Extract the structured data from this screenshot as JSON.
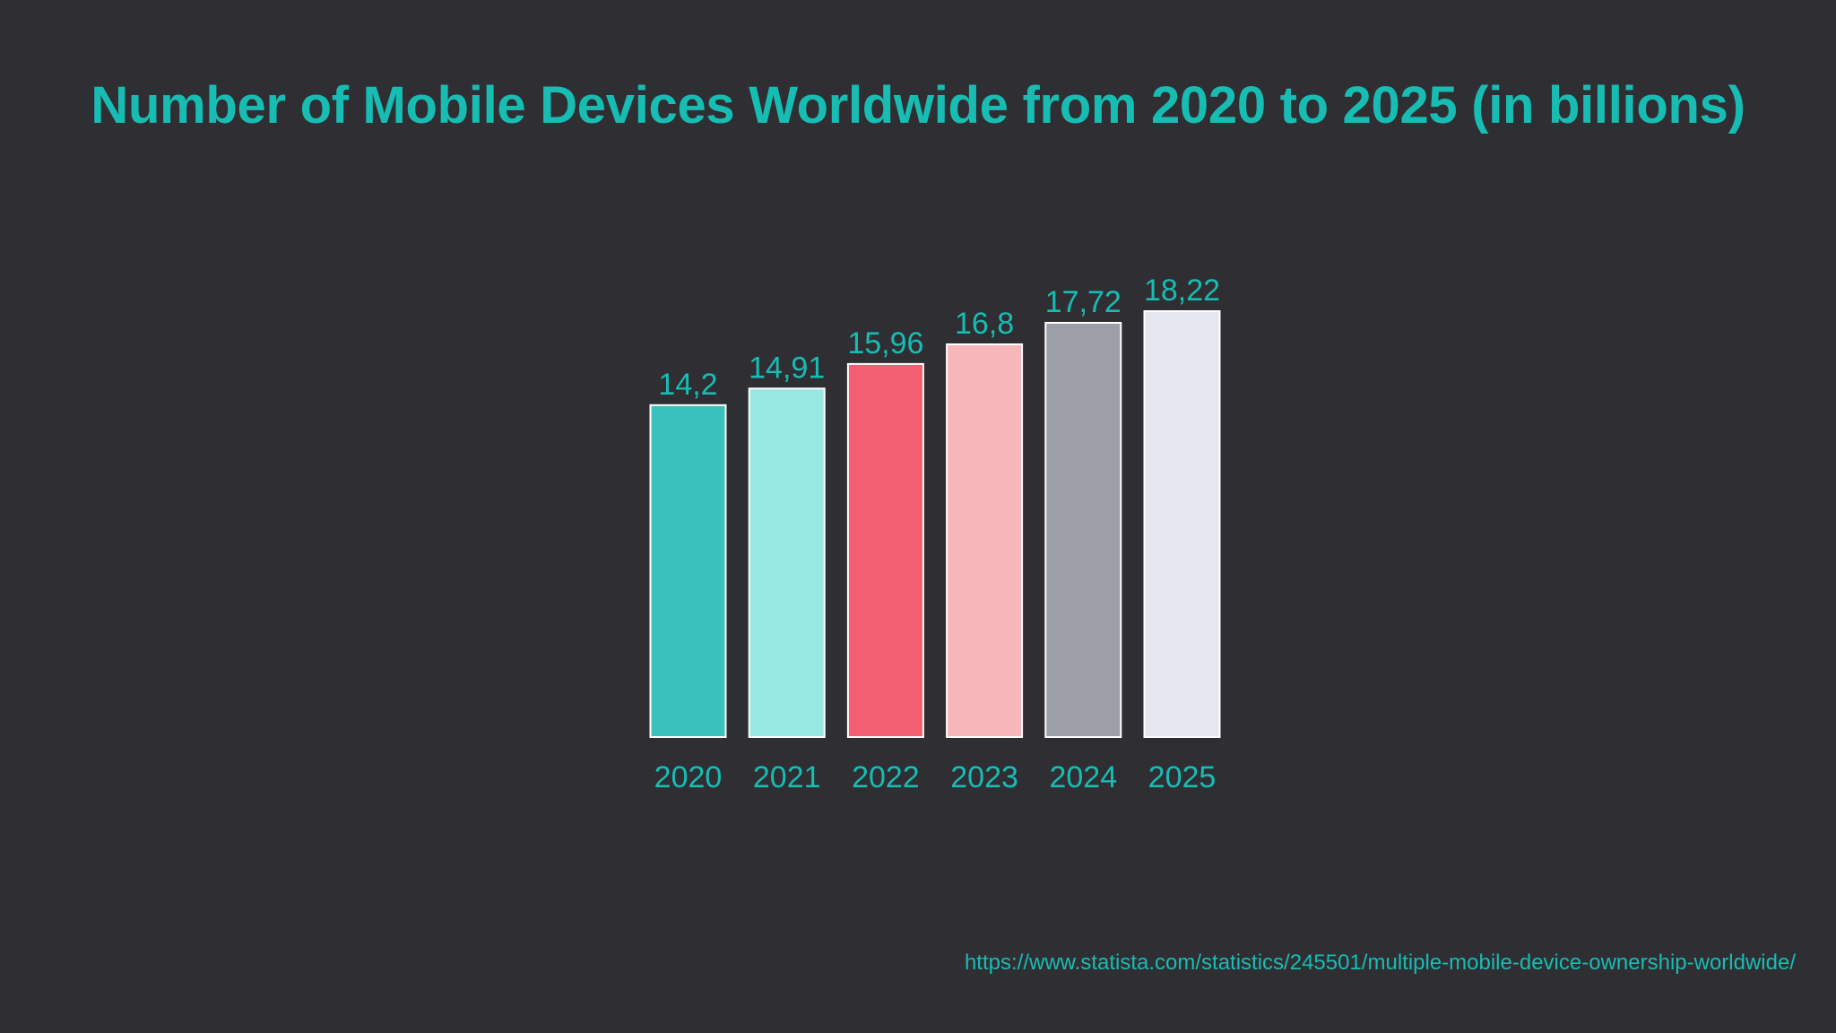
{
  "colors": {
    "background": "#2f2e33",
    "accent": "#17bdb3",
    "bar_outline": "#ffffff"
  },
  "chart_data": {
    "type": "bar",
    "title": "Number of Mobile Devices Worldwide from 2020 to 2025 (in billions)",
    "xlabel": "",
    "ylabel": "",
    "ylim": [
      0,
      18.22
    ],
    "grid": false,
    "categories": [
      "2020",
      "2021",
      "2022",
      "2023",
      "2024",
      "2025"
    ],
    "values": [
      14.2,
      14.91,
      15.96,
      16.8,
      17.72,
      18.22
    ],
    "value_labels": [
      "14,2",
      "14,91",
      "15,96",
      "16,8",
      "17,72",
      "18,22"
    ],
    "bar_colors": [
      "#3bc1bd",
      "#97e8e1",
      "#f25f72",
      "#f7b6b9",
      "#9c9ea8",
      "#e6e6ee"
    ]
  },
  "source": {
    "url_text": "https://www.statista.com/statistics/245501/multiple-mobile-device-ownership-worldwide/"
  }
}
